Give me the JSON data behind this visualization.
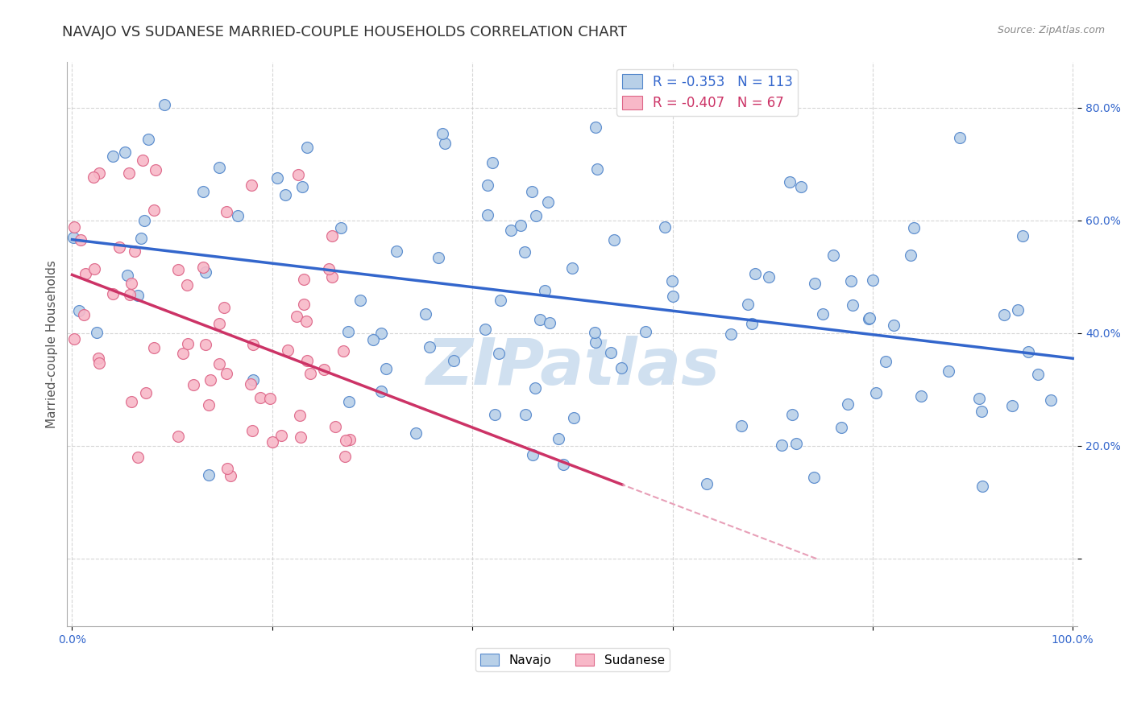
{
  "title": "NAVAJO VS SUDANESE MARRIED-COUPLE HOUSEHOLDS CORRELATION CHART",
  "source": "Source: ZipAtlas.com",
  "ylabel": "Married-couple Households",
  "navajo_R": -0.353,
  "navajo_N": 113,
  "sudanese_R": -0.407,
  "sudanese_N": 67,
  "navajo_color": "#b8d0e8",
  "navajo_edge_color": "#5588cc",
  "navajo_line_color": "#3366cc",
  "sudanese_color": "#f8b8c8",
  "sudanese_edge_color": "#dd6688",
  "sudanese_line_color": "#cc3366",
  "sudanese_dash_color": "#e8a0b8",
  "watermark_color": "#d0e0f0",
  "background_color": "#ffffff",
  "grid_color": "#cccccc",
  "xmin": 0.0,
  "xmax": 1.0,
  "ymin": -0.12,
  "ymax": 0.88,
  "yticks": [
    0.0,
    0.2,
    0.4,
    0.6,
    0.8
  ],
  "ytick_labels": [
    "",
    "20.0%",
    "40.0%",
    "60.0%",
    "80.0%"
  ],
  "xticks": [
    0.0,
    0.2,
    0.4,
    0.6,
    0.8,
    1.0
  ],
  "xtick_labels": [
    "0.0%",
    "",
    "",
    "",
    "",
    "100.0%"
  ],
  "legend_labels": [
    "Navajo",
    "Sudanese"
  ],
  "title_fontsize": 13,
  "axis_fontsize": 11,
  "tick_fontsize": 10,
  "tick_color": "#3366cc"
}
